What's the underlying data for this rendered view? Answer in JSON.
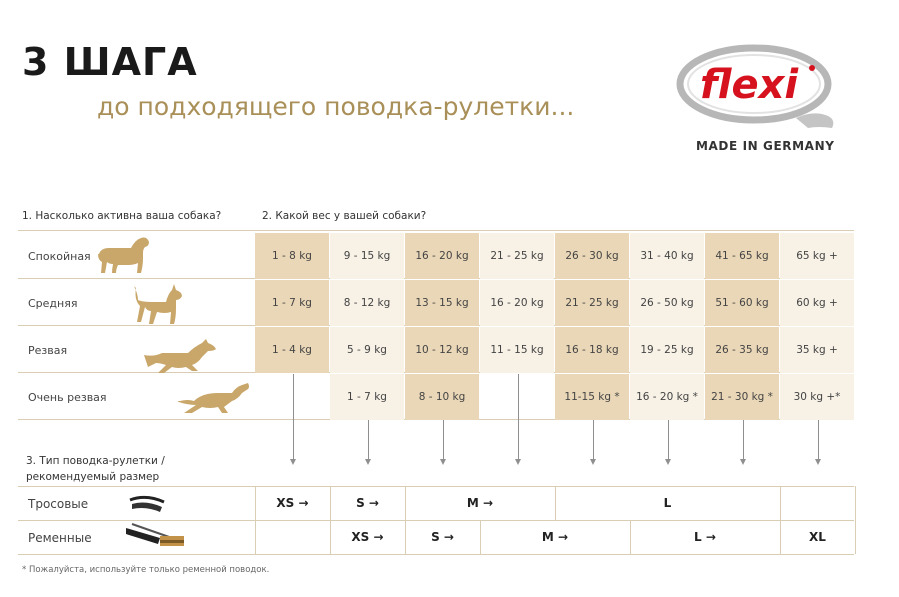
{
  "header": {
    "title": "3 ШАГА",
    "subtitle": "до подходящего поводка-рулетки...",
    "brand": "flexi",
    "made_in": "MADE IN GERMANY"
  },
  "colors": {
    "dark_cell": "#ead7b7",
    "light_cell": "#f7f1e6",
    "gold": "#a98f58",
    "dog": "#c9a76b",
    "brand_red": "#d6121f"
  },
  "step1": "1. Насколько активна ваша собака?",
  "step2": "2. Какой вес у вашей собаки?",
  "step3_line1": "3. Тип поводка-рулетки /",
  "step3_line2": "рекомендуемый размер",
  "activity_rows": [
    {
      "label": "Спокойная",
      "icon": "calm-dog-icon",
      "cells": [
        "1 - 8 kg",
        "9 - 15 kg",
        "16 - 20 kg",
        "21 - 25 kg",
        "26 - 30 kg",
        "31 - 40 kg",
        "41 - 65 kg",
        "65 kg +"
      ]
    },
    {
      "label": "Средняя",
      "icon": "medium-dog-icon",
      "cells": [
        "1 - 7 kg",
        "8 - 12 kg",
        "13 - 15 kg",
        "16 - 20 kg",
        "21 - 25 kg",
        "26 - 50 kg",
        "51 - 60 kg",
        "60 kg +"
      ]
    },
    {
      "label": "Резвая",
      "icon": "lively-dog-icon",
      "cells": [
        "1 - 4 kg",
        "5 - 9 kg",
        "10 - 12 kg",
        "11 - 15 kg",
        "16 - 18 kg",
        "19 - 25 kg",
        "26 - 35 kg",
        "35 kg +"
      ]
    },
    {
      "label": "Очень резвая",
      "icon": "very-lively-dog-icon",
      "cells": [
        "",
        "1 - 7 kg",
        "8 - 10 kg",
        "",
        "11-15 kg *",
        "16 - 20 kg *",
        "21 - 30 kg *",
        "30 kg +*"
      ]
    }
  ],
  "leash_rows": [
    {
      "label": "Тросовые",
      "icon": "cord-leash-icon",
      "sizes": [
        {
          "text": "XS →",
          "start": 0,
          "span": 1
        },
        {
          "text": "S →",
          "start": 1,
          "span": 1
        },
        {
          "text": "M →",
          "start": 2,
          "span": 2
        },
        {
          "text": "L",
          "start": 4,
          "span": 3
        },
        {
          "text": "",
          "start": 7,
          "span": 1
        }
      ]
    },
    {
      "label": "Ременные",
      "icon": "tape-leash-icon",
      "sizes": [
        {
          "text": "",
          "start": 0,
          "span": 1
        },
        {
          "text": "XS →",
          "start": 1,
          "span": 1
        },
        {
          "text": "S →",
          "start": 2,
          "span": 1
        },
        {
          "text": "M →",
          "start": 3,
          "span": 2
        },
        {
          "text": "L →",
          "start": 5,
          "span": 2
        },
        {
          "text": "XL",
          "start": 7,
          "span": 1
        }
      ]
    }
  ],
  "footnote": "* Пожалуйста, используйте только ременной поводок."
}
